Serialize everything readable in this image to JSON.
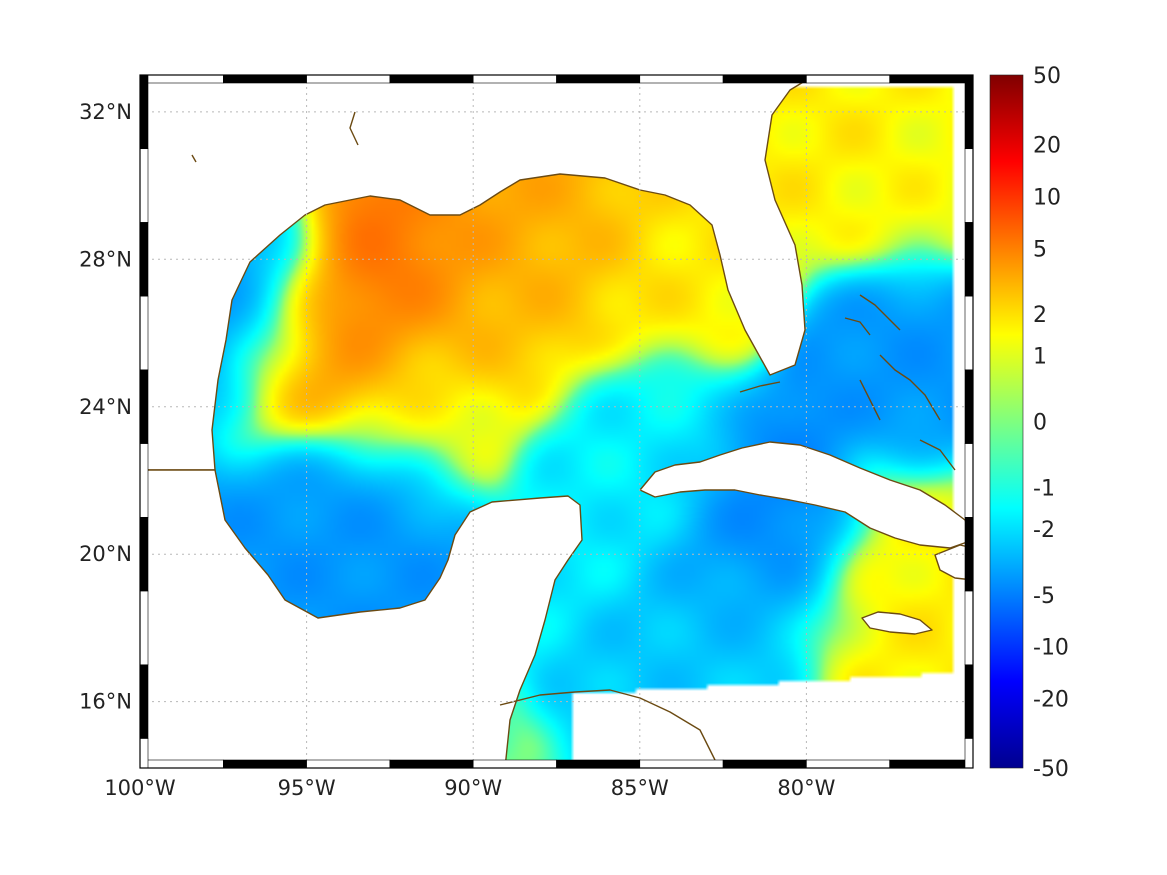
{
  "map": {
    "lon_range": [
      -100,
      -75
    ],
    "lat_range": [
      14.2,
      33
    ],
    "x_ticks": [
      {
        "lon": -100,
        "label": "100°W"
      },
      {
        "lon": -95,
        "label": "95°W"
      },
      {
        "lon": -90,
        "label": "90°W"
      },
      {
        "lon": -85,
        "label": "85°W"
      },
      {
        "lon": -80,
        "label": "80°W"
      }
    ],
    "y_ticks": [
      {
        "lat": 32,
        "label": "32°N"
      },
      {
        "lat": 28,
        "label": "28°N"
      },
      {
        "lat": 24,
        "label": "24°N"
      },
      {
        "lat": 20,
        "label": "20°N"
      },
      {
        "lat": 16,
        "label": "16°N"
      }
    ],
    "grid": true,
    "frame_style": "alternating black/white border",
    "coastline_color": "#6b4a12",
    "colormap": "jet",
    "colorbar": {
      "placement": "right",
      "ticks": [
        "50",
        "20",
        "10",
        "5",
        "2",
        "1",
        "0",
        "-1",
        "-2",
        "-5",
        "-10",
        "-20",
        "-50"
      ]
    },
    "field_hotspots": [
      {
        "lon": -92.5,
        "lat": 27.2,
        "value": 8
      },
      {
        "lon": -94.5,
        "lat": 25.8,
        "value": 7
      },
      {
        "lon": -90,
        "lat": 28.6,
        "value": 5
      },
      {
        "lon": -87,
        "lat": 29.2,
        "value": 4
      },
      {
        "lon": -89,
        "lat": 27.0,
        "value": 3
      },
      {
        "lon": -84.5,
        "lat": 28.2,
        "value": 2
      },
      {
        "lon": -78,
        "lat": 31.5,
        "value": 2
      },
      {
        "lon": -76,
        "lat": 30.6,
        "value": 1.5
      },
      {
        "lon": -92,
        "lat": 24.8,
        "value": 1
      },
      {
        "lon": -77.7,
        "lat": 17.8,
        "value": 2
      },
      {
        "lon": -76.5,
        "lat": 19.7,
        "value": 2
      },
      {
        "lon": -96.5,
        "lat": 26.8,
        "value": -6
      },
      {
        "lon": -94,
        "lat": 21,
        "value": -5
      },
      {
        "lon": -81,
        "lat": 20.5,
        "value": -6
      },
      {
        "lon": -76.2,
        "lat": 25,
        "value": -5
      },
      {
        "lon": -82,
        "lat": 18,
        "value": -3
      },
      {
        "lon": -85,
        "lat": 22.5,
        "value": -2
      }
    ]
  }
}
